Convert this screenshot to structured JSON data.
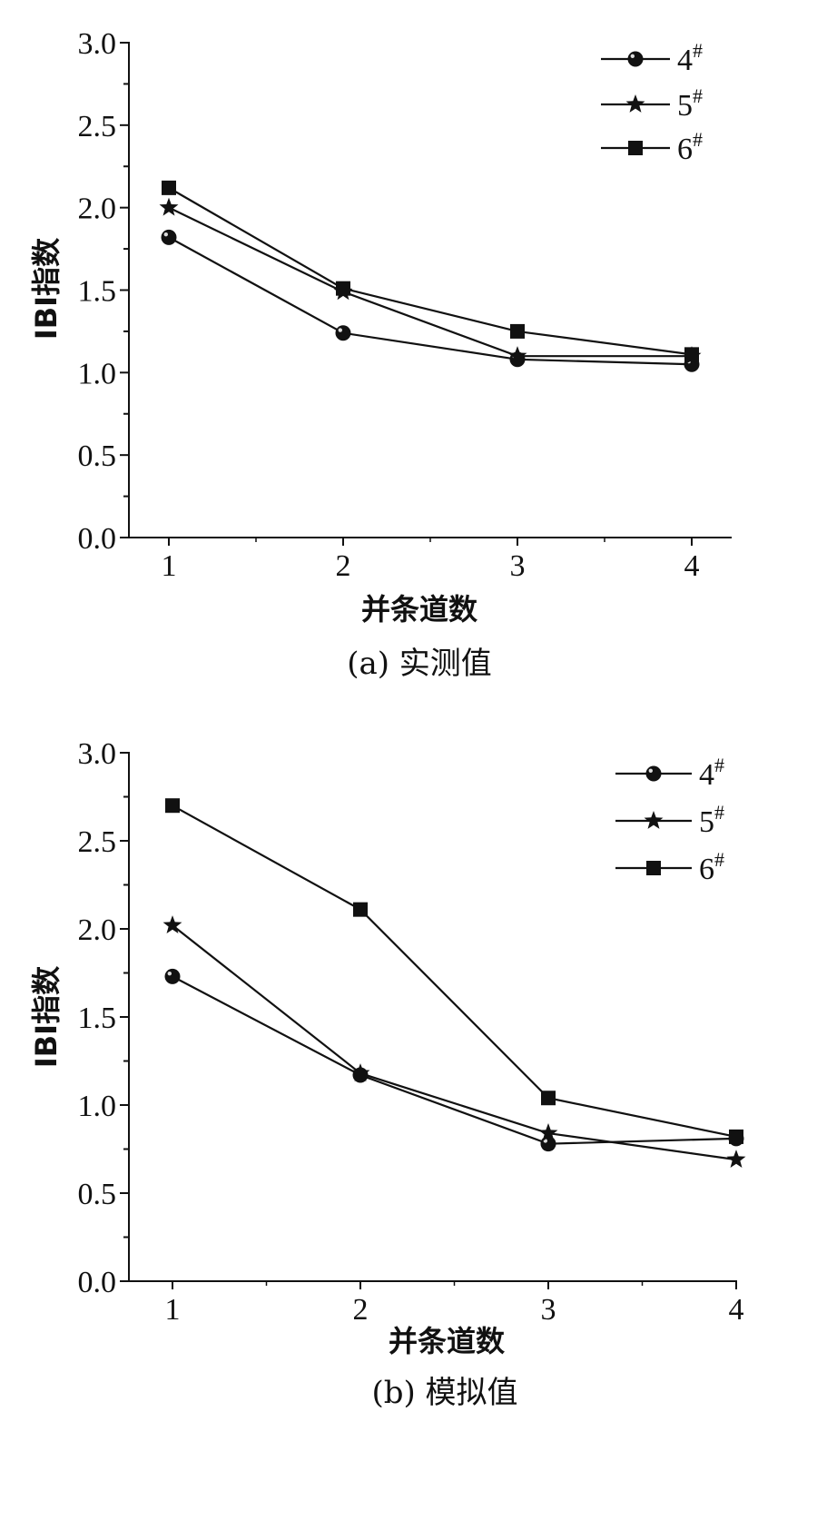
{
  "chart_data": [
    {
      "type": "line",
      "ylabel": "IBI指数",
      "xlabel": "并条道数",
      "caption": "(a) 实测值",
      "x": [
        1,
        2,
        3,
        4
      ],
      "xticks": [
        "1",
        "2",
        "3",
        "4"
      ],
      "ylim": [
        0,
        3.0
      ],
      "yticks": [
        "0.0",
        "0.5",
        "1.0",
        "1.5",
        "2.0",
        "2.5",
        "3.0"
      ],
      "legend_position": "top-right",
      "series": [
        {
          "name": "4",
          "sup": "#",
          "marker": "circle",
          "values": [
            1.82,
            1.24,
            1.08,
            1.05
          ]
        },
        {
          "name": "5",
          "sup": "#",
          "marker": "star",
          "values": [
            2.0,
            1.49,
            1.1,
            1.1
          ]
        },
        {
          "name": "6",
          "sup": "#",
          "marker": "square",
          "values": [
            2.12,
            1.51,
            1.25,
            1.11
          ]
        }
      ]
    },
    {
      "type": "line",
      "ylabel": "IBI指数",
      "xlabel": "并条道数",
      "caption": "(b) 模拟值",
      "x": [
        1,
        2,
        3,
        4
      ],
      "xticks": [
        "1",
        "2",
        "3",
        "4"
      ],
      "ylim": [
        0,
        3.0
      ],
      "yticks": [
        "0.0",
        "0.5",
        "1.0",
        "1.5",
        "2.0",
        "2.5",
        "3.0"
      ],
      "legend_position": "top-right",
      "series": [
        {
          "name": "4",
          "sup": "#",
          "marker": "circle",
          "values": [
            1.73,
            1.17,
            0.78,
            0.81
          ]
        },
        {
          "name": "5",
          "sup": "#",
          "marker": "star",
          "values": [
            2.02,
            1.18,
            0.84,
            0.69
          ]
        },
        {
          "name": "6",
          "sup": "#",
          "marker": "square",
          "values": [
            2.7,
            2.11,
            1.04,
            0.82
          ]
        }
      ]
    }
  ]
}
